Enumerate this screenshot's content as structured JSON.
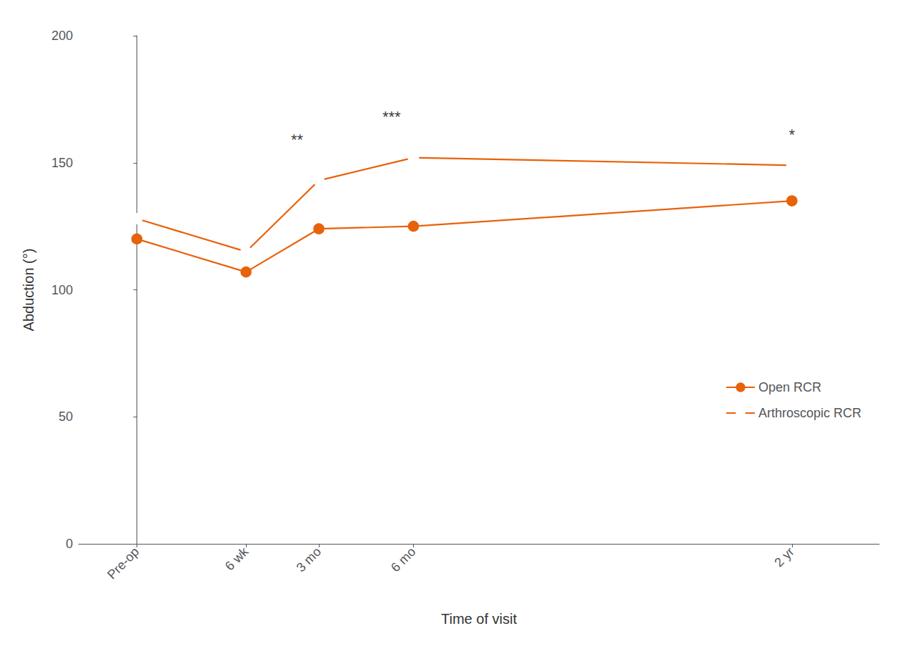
{
  "chart_data": {
    "type": "line",
    "x": [
      0,
      1.5,
      2.5,
      3.8,
      9.0
    ],
    "xlabel": "Time of visit",
    "ylabel": "Abduction (°)",
    "xlim": [
      -0.8,
      10.2
    ],
    "xticks": [
      {
        "value": 0,
        "label": "Pre-op"
      },
      {
        "value": 1.5,
        "label": "6 wk"
      },
      {
        "value": 2.5,
        "label": "3 mo"
      },
      {
        "value": 3.8,
        "label": "6 mo"
      },
      {
        "value": 9.0,
        "label": "2 yr"
      }
    ],
    "ylim": [
      0,
      200
    ],
    "yticks": [
      0,
      50,
      100,
      150,
      200
    ],
    "grid": false,
    "legend": "lower right",
    "series": [
      {
        "name": "Open RCR",
        "color": "#E8620A",
        "marker": "circle",
        "values": [
          120,
          107,
          124,
          125,
          135
        ]
      },
      {
        "name": "Arthroscopic RCR",
        "color": "#E8620A",
        "marker": "open_circle",
        "values": [
          128,
          115,
          143,
          152,
          149
        ]
      }
    ],
    "annotations": [
      {
        "text": "**",
        "x": 2.2,
        "y": 156
      },
      {
        "text": "***",
        "x": 3.5,
        "y": 165
      },
      {
        "text": "*",
        "x": 9.0,
        "y": 158
      }
    ]
  }
}
